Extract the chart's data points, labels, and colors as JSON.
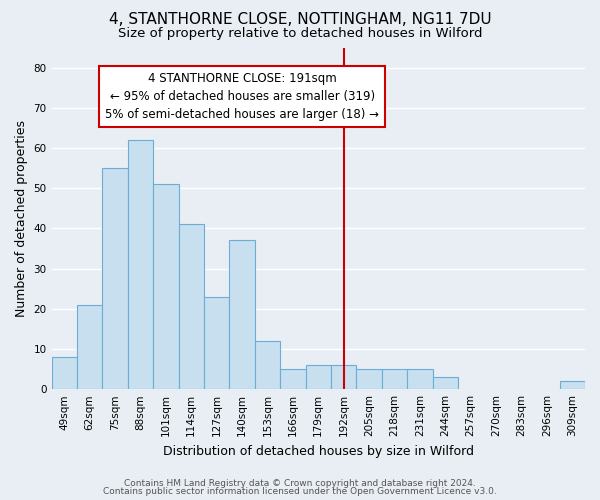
{
  "title": "4, STANTHORNE CLOSE, NOTTINGHAM, NG11 7DU",
  "subtitle": "Size of property relative to detached houses in Wilford",
  "xlabel": "Distribution of detached houses by size in Wilford",
  "ylabel": "Number of detached properties",
  "bar_labels": [
    "49sqm",
    "62sqm",
    "75sqm",
    "88sqm",
    "101sqm",
    "114sqm",
    "127sqm",
    "140sqm",
    "153sqm",
    "166sqm",
    "179sqm",
    "192sqm",
    "205sqm",
    "218sqm",
    "231sqm",
    "244sqm",
    "257sqm",
    "270sqm",
    "283sqm",
    "296sqm",
    "309sqm"
  ],
  "bar_values": [
    8,
    21,
    55,
    62,
    51,
    41,
    23,
    37,
    12,
    5,
    6,
    6,
    5,
    5,
    5,
    3,
    0,
    0,
    0,
    0,
    2
  ],
  "bar_color": "#c8dff0",
  "bar_edge_color": "#6aaed6",
  "background_color": "#e8eef4",
  "grid_color": "#ffffff",
  "vline_x_index": 11,
  "vline_color": "#cc0000",
  "annotation_title": "4 STANTHORNE CLOSE: 191sqm",
  "annotation_line1": "← 95% of detached houses are smaller (319)",
  "annotation_line2": "5% of semi-detached houses are larger (18) →",
  "annotation_box_color": "#ffffff",
  "annotation_box_edge": "#cc0000",
  "ylim": [
    0,
    85
  ],
  "yticks": [
    0,
    10,
    20,
    30,
    40,
    50,
    60,
    70,
    80
  ],
  "footer1": "Contains HM Land Registry data © Crown copyright and database right 2024.",
  "footer2": "Contains public sector information licensed under the Open Government Licence v3.0.",
  "title_fontsize": 11,
  "subtitle_fontsize": 9.5,
  "axis_label_fontsize": 9,
  "tick_fontsize": 7.5,
  "annotation_fontsize": 8.5,
  "footer_fontsize": 6.5
}
